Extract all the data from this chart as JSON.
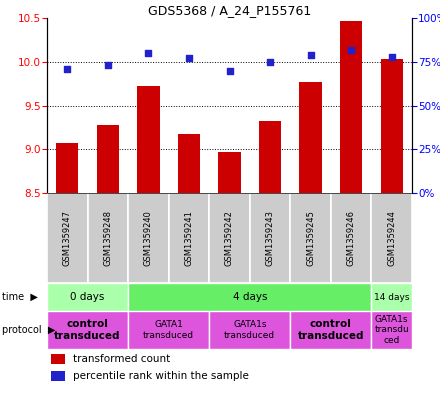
{
  "title": "GDS5368 / A_24_P155761",
  "samples": [
    "GSM1359247",
    "GSM1359248",
    "GSM1359240",
    "GSM1359241",
    "GSM1359242",
    "GSM1359243",
    "GSM1359245",
    "GSM1359246",
    "GSM1359244"
  ],
  "transformed_counts": [
    9.07,
    9.28,
    9.72,
    9.18,
    8.97,
    9.32,
    9.77,
    10.47,
    10.03
  ],
  "percentile_ranks": [
    71,
    73,
    80,
    77,
    70,
    75,
    79,
    82,
    78
  ],
  "bar_bottom": 8.5,
  "ylim_left": [
    8.5,
    10.5
  ],
  "ylim_right": [
    0,
    100
  ],
  "yticks_left": [
    8.5,
    9.0,
    9.5,
    10.0,
    10.5
  ],
  "yticks_right": [
    0,
    25,
    50,
    75,
    100
  ],
  "bar_color": "#cc0000",
  "dot_color": "#2222cc",
  "sample_bg_color": "#cccccc",
  "time_groups": [
    {
      "label": "0 days",
      "start": 0,
      "end": 2,
      "color": "#aaffaa"
    },
    {
      "label": "4 days",
      "start": 2,
      "end": 8,
      "color": "#66ee66"
    },
    {
      "label": "14 days",
      "start": 8,
      "end": 9,
      "color": "#aaffaa"
    }
  ],
  "protocol_groups": [
    {
      "label": "control\ntransduced",
      "start": 0,
      "end": 2,
      "bold": true
    },
    {
      "label": "GATA1\ntransduced",
      "start": 2,
      "end": 4,
      "bold": false
    },
    {
      "label": "GATA1s\ntransduced",
      "start": 4,
      "end": 6,
      "bold": false
    },
    {
      "label": "control\ntransduced",
      "start": 6,
      "end": 8,
      "bold": true
    },
    {
      "label": "GATA1s\ntransdu\nced",
      "start": 8,
      "end": 9,
      "bold": false
    }
  ],
  "protocol_color": "#dd55dd"
}
